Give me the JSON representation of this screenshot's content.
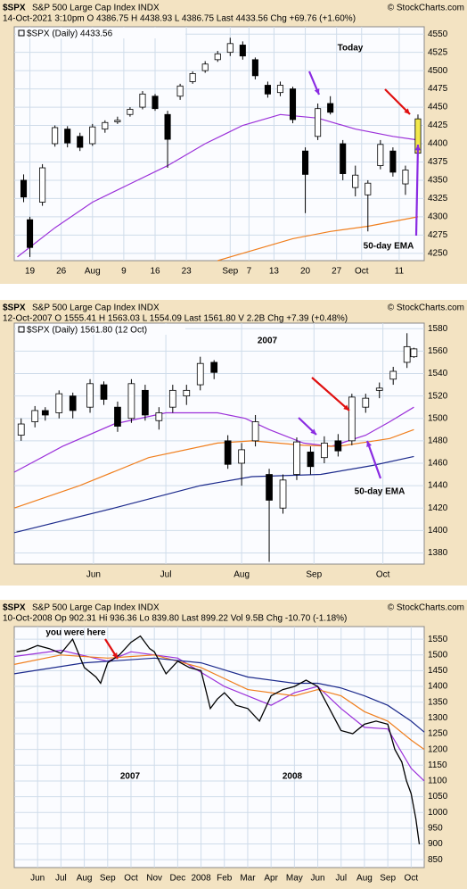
{
  "chart_data": [
    {
      "type": "candlestick",
      "title": "$SPX",
      "subtitle": "S&P 500 Large Cap Index INDX",
      "info": "14-Oct-2021 3:10pm   O 4386.75  H 4438.93  L 4386.75  Last 4433.56  Chg +69.76 (+1.60%)",
      "source": "© StockCharts.com",
      "legend_label": "$SPX (Daily) 4433.56",
      "annotations": [
        "Today",
        "50-day EMA"
      ],
      "xlim": [
        -1.5,
        64
      ],
      "ylim": [
        4240,
        4560
      ],
      "xticks": [
        {
          "value": 1,
          "label": "19"
        },
        {
          "value": 6,
          "label": "26"
        },
        {
          "value": 11,
          "label": "Aug"
        },
        {
          "value": 16,
          "label": "9"
        },
        {
          "value": 21,
          "label": "16"
        },
        {
          "value": 26,
          "label": "23"
        },
        {
          "value": 33,
          "label": "Sep"
        },
        {
          "value": 36,
          "label": "7"
        },
        {
          "value": 40,
          "label": "13"
        },
        {
          "value": 45,
          "label": "20"
        },
        {
          "value": 50,
          "label": "27"
        },
        {
          "value": 54,
          "label": "Oct"
        },
        {
          "value": 60,
          "label": "11"
        }
      ],
      "yticks": [
        4250,
        4275,
        4300,
        4325,
        4350,
        4375,
        4400,
        4425,
        4450,
        4475,
        4500,
        4525,
        4550
      ],
      "grid": true,
      "up_color": "#ffffff",
      "down_color": "#000000",
      "last_color": "#f2e84b",
      "x": [
        0,
        1,
        3,
        5,
        7,
        9,
        11,
        13,
        15,
        17,
        19,
        21,
        23,
        25,
        27,
        29,
        31,
        33,
        35,
        37,
        39,
        41,
        43,
        45,
        47,
        49,
        51,
        53,
        55,
        57,
        59,
        61,
        63
      ],
      "open": [
        4350,
        4296,
        4320,
        4400,
        4420,
        4410,
        4400,
        4420,
        4430,
        4440,
        4450,
        4465,
        4440,
        4465,
        4485,
        4500,
        4515,
        4525,
        4535,
        4515,
        4480,
        4470,
        4475,
        4390,
        4410,
        4455,
        4400,
        4340,
        4330,
        4370,
        4390,
        4345,
        4387
      ],
      "high": [
        4358,
        4300,
        4372,
        4425,
        4424,
        4415,
        4427,
        4432,
        4437,
        4450,
        4472,
        4468,
        4445,
        4482,
        4499,
        4513,
        4527,
        4545,
        4540,
        4518,
        4485,
        4485,
        4478,
        4395,
        4455,
        4465,
        4405,
        4370,
        4350,
        4405,
        4395,
        4370,
        4440
      ],
      "low": [
        4320,
        4245,
        4315,
        4396,
        4395,
        4390,
        4397,
        4415,
        4427,
        4437,
        4447,
        4445,
        4367,
        4460,
        4482,
        4497,
        4512,
        4520,
        4515,
        4488,
        4463,
        4465,
        4428,
        4305,
        4405,
        4440,
        4350,
        4328,
        4280,
        4365,
        4355,
        4330,
        4386
      ],
      "close": [
        4327,
        4258,
        4367,
        4422,
        4401,
        4395,
        4423,
        4429,
        4432,
        4447,
        4468,
        4448,
        4406,
        4479,
        4496,
        4509,
        4523,
        4537,
        4520,
        4493,
        4468,
        4480,
        4433,
        4358,
        4448,
        4443,
        4359,
        4357,
        4346,
        4399,
        4361,
        4364,
        4434
      ],
      "moving_averages": [
        {
          "color": "#9b30d9",
          "x": [
            -1,
            5,
            11,
            17,
            23,
            29,
            35,
            41,
            47,
            53,
            59,
            63
          ],
          "values": [
            4245,
            4285,
            4320,
            4345,
            4370,
            4400,
            4425,
            4440,
            4435,
            4420,
            4410,
            4405
          ]
        },
        {
          "color": "#f07f1e",
          "x": [
            31,
            37,
            43,
            49,
            55,
            63
          ],
          "values": [
            4240,
            4255,
            4270,
            4280,
            4287,
            4300
          ]
        }
      ]
    },
    {
      "type": "candlestick",
      "title": "$SPX",
      "subtitle": "S&P 500 Large Cap Index INDX",
      "info": "12-Oct-2007   O 1555.41  H 1563.03  L 1554.09  Last 1561.80  V 2.2B  Chg +7.39 (+0.48%)",
      "source": "© StockCharts.com",
      "legend_label": "$SPX (Daily) 1561.80 (12 Oct)",
      "annotations": [
        "2007",
        "50-day EMA"
      ],
      "xlim": [
        -9,
        110
      ],
      "ylim": [
        1370,
        1585
      ],
      "xticks": [
        {
          "value": 14,
          "label": "Jun"
        },
        {
          "value": 35,
          "label": "Jul"
        },
        {
          "value": 57,
          "label": "Aug"
        },
        {
          "value": 78,
          "label": "Sep"
        },
        {
          "value": 98,
          "label": "Oct"
        }
      ],
      "yticks": [
        1380,
        1400,
        1420,
        1440,
        1460,
        1480,
        1500,
        1520,
        1540,
        1560,
        1580
      ],
      "grid": true,
      "up_color": "#ffffff",
      "down_color": "#000000",
      "x": [
        -7,
        -3,
        0,
        4,
        8,
        13,
        17,
        21,
        25,
        29,
        33,
        37,
        41,
        45,
        49,
        53,
        57,
        61,
        65,
        69,
        73,
        77,
        81,
        85,
        89,
        93,
        97,
        101,
        105,
        107
      ],
      "open": [
        1485,
        1497,
        1507,
        1505,
        1520,
        1510,
        1530,
        1510,
        1500,
        1525,
        1498,
        1510,
        1520,
        1530,
        1550,
        1480,
        1460,
        1480,
        1450,
        1420,
        1450,
        1470,
        1465,
        1480,
        1480,
        1510,
        1525,
        1535,
        1550,
        1555
      ],
      "high": [
        1500,
        1511,
        1510,
        1525,
        1523,
        1535,
        1533,
        1515,
        1535,
        1530,
        1510,
        1530,
        1530,
        1555,
        1552,
        1485,
        1478,
        1503,
        1455,
        1450,
        1483,
        1475,
        1484,
        1486,
        1522,
        1522,
        1532,
        1546,
        1576,
        1563
      ],
      "low": [
        1480,
        1492,
        1498,
        1500,
        1500,
        1505,
        1512,
        1488,
        1496,
        1498,
        1490,
        1505,
        1512,
        1525,
        1535,
        1455,
        1440,
        1475,
        1372,
        1415,
        1445,
        1450,
        1460,
        1466,
        1476,
        1505,
        1518,
        1530,
        1545,
        1554
      ],
      "close": [
        1495,
        1507,
        1503,
        1522,
        1507,
        1531,
        1517,
        1493,
        1531,
        1503,
        1505,
        1525,
        1525,
        1549,
        1541,
        1459,
        1472,
        1497,
        1427,
        1445,
        1479,
        1457,
        1478,
        1471,
        1519,
        1518,
        1527,
        1542,
        1564,
        1562
      ],
      "moving_averages": [
        {
          "color": "#9b30d9",
          "x": [
            -9,
            5,
            20,
            35,
            50,
            58,
            65,
            75,
            83,
            93,
            100,
            107
          ],
          "values": [
            1452,
            1475,
            1495,
            1505,
            1505,
            1500,
            1490,
            1478,
            1475,
            1485,
            1497,
            1510
          ]
        },
        {
          "color": "#f07f1e",
          "x": [
            -9,
            10,
            30,
            50,
            60,
            75,
            85,
            100,
            107
          ],
          "values": [
            1420,
            1440,
            1465,
            1478,
            1480,
            1476,
            1475,
            1482,
            1490
          ]
        },
        {
          "color": "#1c2a8c",
          "x": [
            -9,
            20,
            45,
            60,
            80,
            95,
            107
          ],
          "values": [
            1398,
            1420,
            1440,
            1448,
            1450,
            1458,
            1466
          ]
        }
      ]
    },
    {
      "type": "line",
      "title": "$SPX",
      "subtitle": "S&P 500 Large Cap Index INDX",
      "info": "10-Oct-2008   Op 902.31  Hi 936.36  Lo 839.80  Last 899.22  Vol 9.5B  Chg -10.70 (-1.18%)",
      "source": "© StockCharts.com",
      "annotations": [
        "you were here",
        "2007",
        "2008"
      ],
      "xlim": [
        -1,
        16.56
      ],
      "ylim": [
        825,
        1590
      ],
      "xticks": [
        {
          "value": 0,
          "label": "Jun"
        },
        {
          "value": 1,
          "label": "Jul"
        },
        {
          "value": 2,
          "label": "Aug"
        },
        {
          "value": 3,
          "label": "Sep"
        },
        {
          "value": 4,
          "label": "Oct"
        },
        {
          "value": 5,
          "label": "Nov"
        },
        {
          "value": 6,
          "label": "Dec"
        },
        {
          "value": 7,
          "label": "2008"
        },
        {
          "value": 8,
          "label": "Feb"
        },
        {
          "value": 9,
          "label": "Mar"
        },
        {
          "value": 10,
          "label": "Apr"
        },
        {
          "value": 11,
          "label": "May"
        },
        {
          "value": 12,
          "label": "Jun"
        },
        {
          "value": 13,
          "label": "Jul"
        },
        {
          "value": 14,
          "label": "Aug"
        },
        {
          "value": 15,
          "label": "Sep"
        },
        {
          "value": 16,
          "label": "Oct"
        }
      ],
      "yticks": [
        850,
        900,
        950,
        1000,
        1050,
        1100,
        1150,
        1200,
        1250,
        1300,
        1350,
        1400,
        1450,
        1500,
        1550
      ],
      "grid": true,
      "color": "#000000",
      "x": [
        -0.9,
        -0.5,
        0,
        0.5,
        1,
        1.5,
        2,
        2.5,
        2.7,
        3,
        3.5,
        4,
        4.4,
        4.8,
        5,
        5.5,
        6,
        6.5,
        7,
        7.4,
        7.7,
        8,
        8.5,
        9,
        9.5,
        10,
        10.5,
        11,
        11.5,
        12,
        12.5,
        13,
        13.5,
        14,
        14.5,
        15,
        15.3,
        15.6,
        15.8,
        16,
        16.2,
        16.35
      ],
      "values": [
        1510,
        1515,
        1530,
        1520,
        1505,
        1550,
        1460,
        1430,
        1410,
        1475,
        1500,
        1540,
        1560,
        1520,
        1510,
        1440,
        1480,
        1460,
        1450,
        1330,
        1360,
        1380,
        1340,
        1330,
        1290,
        1370,
        1390,
        1400,
        1420,
        1400,
        1330,
        1260,
        1250,
        1280,
        1290,
        1280,
        1200,
        1160,
        1100,
        1060,
        980,
        899
      ],
      "moving_averages": [
        {
          "color": "#9b30d9",
          "x": [
            -1,
            1,
            3,
            4,
            6,
            8,
            10,
            11,
            12,
            13,
            14,
            15,
            16,
            16.56
          ],
          "values": [
            1495,
            1515,
            1480,
            1510,
            1490,
            1400,
            1340,
            1380,
            1400,
            1330,
            1270,
            1265,
            1140,
            1100
          ]
        },
        {
          "color": "#f07f1e",
          "x": [
            -1,
            1,
            3,
            5,
            7,
            9,
            11,
            12,
            13,
            14,
            15,
            16,
            16.56
          ],
          "values": [
            1470,
            1500,
            1490,
            1500,
            1460,
            1390,
            1370,
            1390,
            1370,
            1320,
            1290,
            1230,
            1200
          ]
        },
        {
          "color": "#1c2a8c",
          "x": [
            -1,
            2,
            5,
            7,
            9,
            11,
            12,
            13,
            14,
            15,
            16,
            16.56
          ],
          "values": [
            1440,
            1475,
            1490,
            1475,
            1430,
            1410,
            1410,
            1395,
            1370,
            1340,
            1290,
            1255
          ]
        }
      ]
    }
  ]
}
